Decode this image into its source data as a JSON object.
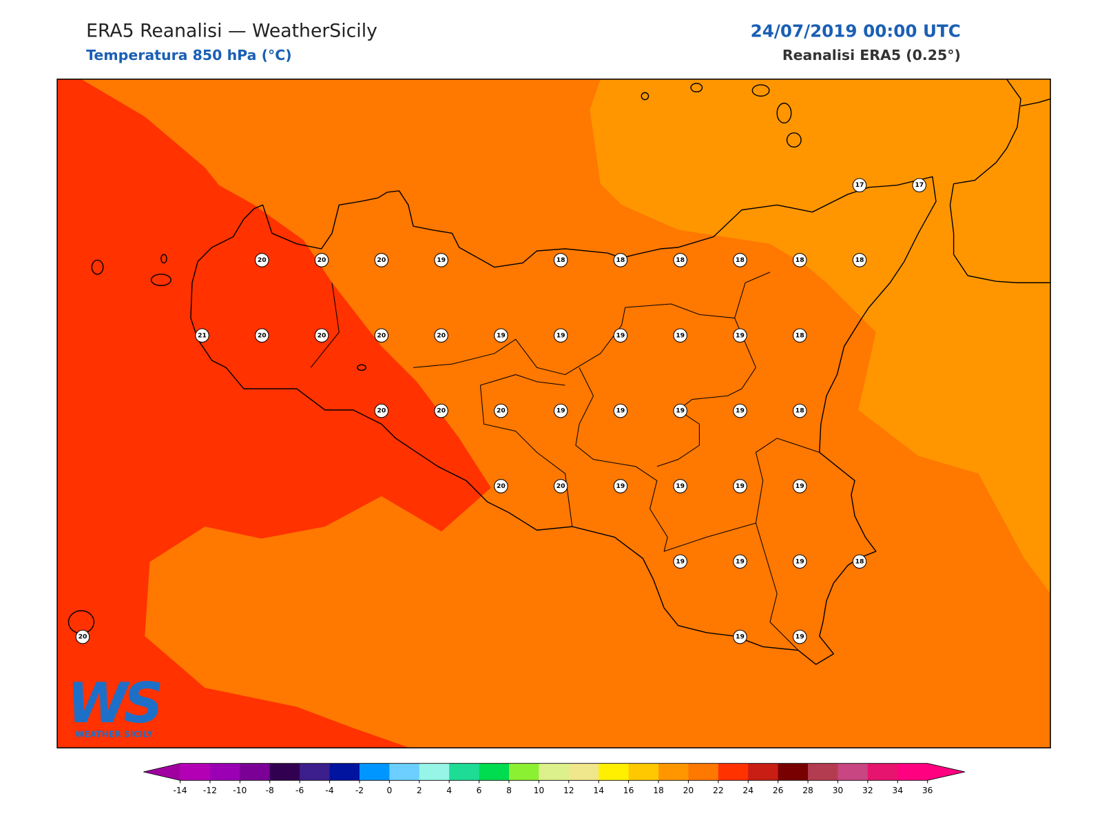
{
  "header": {
    "title": "ERA5 Reanalisi — WeatherSicily",
    "subtitle": "Temperatura 850 hPa (°C)",
    "date": "24/07/2019 00:00 UTC",
    "source": "Reanalisi ERA5 (0.25°)"
  },
  "stations": [
    17,
    17,
    20,
    20,
    20,
    19,
    18,
    18,
    18,
    18,
    18,
    18,
    21,
    20,
    20,
    20,
    20,
    19,
    19,
    19,
    19,
    19,
    18,
    20,
    20,
    20,
    19,
    19,
    19,
    19,
    18,
    20,
    20,
    19,
    19,
    19,
    19,
    19,
    19,
    19,
    18,
    20,
    19,
    19
  ],
  "colorbar": {
    "ticks": [
      -14,
      -12,
      -10,
      -8,
      -6,
      -4,
      -2,
      0,
      2,
      4,
      6,
      8,
      10,
      12,
      14,
      16,
      18,
      20,
      22,
      24,
      26,
      28,
      30,
      32,
      34,
      36
    ],
    "colors": [
      "#b400b4",
      "#9b00b4",
      "#7a0096",
      "#320050",
      "#3c1e8c",
      "#0014a0",
      "#0096ff",
      "#6ccfff",
      "#96f5e6",
      "#1edc96",
      "#00dc50",
      "#8cf032",
      "#dcf08c",
      "#f0e68c",
      "#fff000",
      "#ffc800",
      "#ff9600",
      "#ff7800",
      "#ff3200",
      "#c81e14",
      "#780000",
      "#b43c50",
      "#c84682",
      "#e6146e",
      "#ff0080"
    ],
    "under": "#a000a0",
    "over": "#ff0080"
  },
  "logo": {
    "mark": "WS",
    "name": "WEATHER SICILY"
  }
}
